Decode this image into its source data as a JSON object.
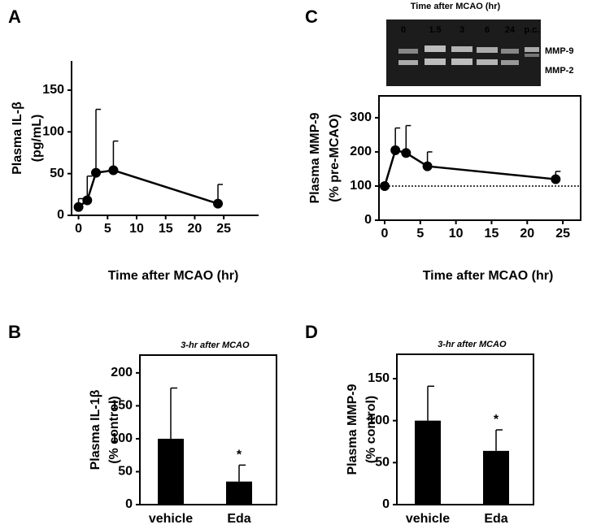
{
  "chart_data": [
    {
      "type": "line",
      "panel": "A",
      "ylabel": [
        "Plasma IL-β",
        "(pg/mL)"
      ],
      "xlabel": "Time after MCAO (hr)",
      "x": [
        0,
        1.5,
        3,
        6,
        24
      ],
      "values": [
        10,
        18,
        51,
        54,
        14
      ],
      "errors": [
        10,
        29,
        76,
        35,
        23
      ],
      "xlim": [
        -1.2,
        31
      ],
      "xticks": [
        0,
        5,
        10,
        15,
        20,
        25
      ],
      "ylim": [
        0,
        185
      ],
      "yticks": [
        0,
        50,
        100,
        150
      ],
      "color": "#000000",
      "frame": "axes"
    },
    {
      "type": "bar",
      "panel": "B",
      "ylabel": [
        "Plasma IL-1β",
        "(% control)"
      ],
      "annotation": "3-hr after MCAO",
      "categories": [
        "vehicle",
        "Eda"
      ],
      "values": [
        100,
        35
      ],
      "errors": [
        77,
        25
      ],
      "significance": [
        null,
        "*"
      ],
      "ylim": [
        0,
        227
      ],
      "yticks": [
        0,
        50,
        100,
        150,
        200
      ],
      "color": "#000000",
      "frame": "box"
    },
    {
      "type": "line",
      "panel": "C",
      "ylabel": [
        "Plasma MMP-9",
        "(% pre-MCAO)"
      ],
      "xlabel": "Time after MCAO (hr)",
      "x": [
        0,
        1.5,
        3,
        6,
        24
      ],
      "values": [
        100,
        205,
        197,
        158,
        120
      ],
      "errors": [
        0,
        65,
        80,
        42,
        23
      ],
      "xlim": [
        -0.8,
        27.5
      ],
      "xticks": [
        0,
        5,
        10,
        15,
        20,
        25
      ],
      "ylim": [
        0,
        364
      ],
      "yticks": [
        0,
        100,
        200,
        300
      ],
      "refline": 100,
      "color": "#000000",
      "frame": "box",
      "inset": {
        "title": "Time after MCAO (hr)",
        "lanes": [
          "0",
          "1.5",
          "3",
          "6",
          "24",
          "p.c."
        ],
        "bands": [
          "MMP-9",
          "MMP-2"
        ]
      }
    },
    {
      "type": "bar",
      "panel": "D",
      "ylabel": [
        "Plasma MMP-9",
        "(% control)"
      ],
      "annotation": "3-hr after MCAO",
      "categories": [
        "vehicle",
        "Eda"
      ],
      "values": [
        100,
        64
      ],
      "errors": [
        41,
        25
      ],
      "significance": [
        null,
        "*"
      ],
      "ylim": [
        0,
        179
      ],
      "yticks": [
        0,
        50,
        100,
        150
      ],
      "color": "#000000",
      "frame": "box"
    }
  ]
}
